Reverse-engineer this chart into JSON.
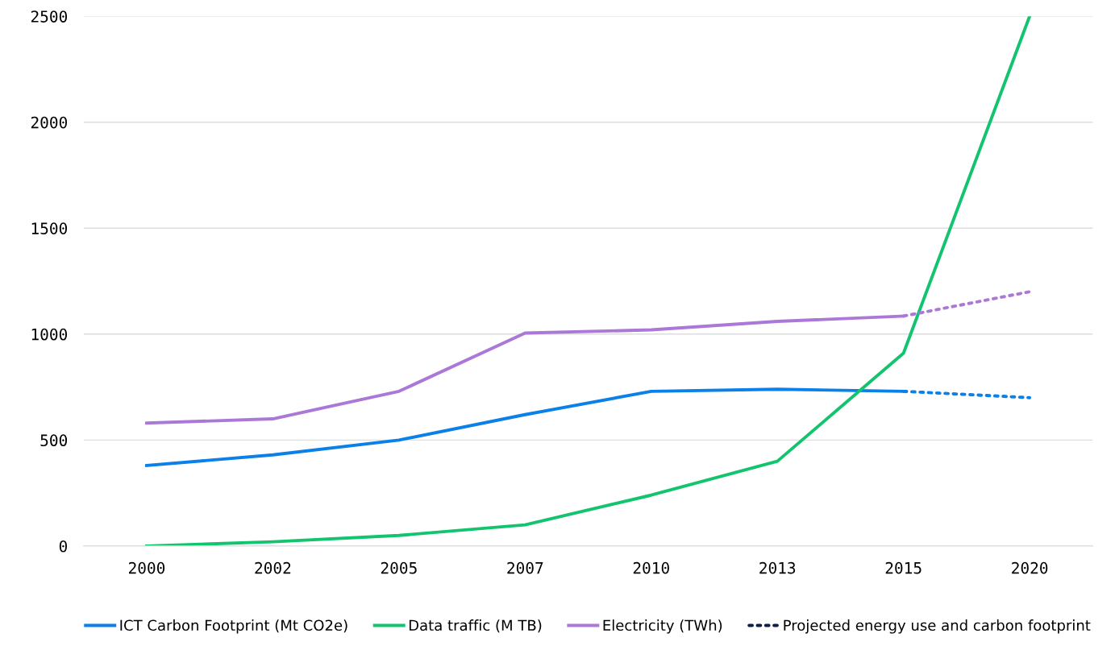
{
  "chart_data": {
    "type": "line",
    "categories": [
      "2000",
      "2002",
      "2005",
      "2007",
      "2010",
      "2013",
      "2015",
      "2020"
    ],
    "series": [
      {
        "name": "ICT Carbon Footprint (Mt CO2e)",
        "color": "#0a80e8",
        "values": [
          380,
          430,
          500,
          620,
          730,
          740,
          730,
          null
        ]
      },
      {
        "name": "Data traffic (M TB)",
        "color": "#13c46e",
        "values": [
          0,
          20,
          50,
          100,
          240,
          400,
          910,
          2500
        ]
      },
      {
        "name": "Electricity (TWh)",
        "color": "#ab78d8",
        "values": [
          580,
          600,
          730,
          1005,
          1020,
          1060,
          1085,
          null
        ]
      },
      {
        "color": "#0a80e8",
        "line_style": "dotted",
        "values": [
          null,
          null,
          null,
          null,
          null,
          null,
          730,
          700
        ]
      },
      {
        "color": "#ab78d8",
        "line_style": "dotted",
        "values": [
          null,
          null,
          null,
          null,
          null,
          null,
          1085,
          1200
        ]
      },
      {
        "name": "Projected energy use and carbon footprint",
        "color": "#0c1f4a",
        "line_style": "dotted",
        "values": [
          null,
          null,
          null,
          null,
          null,
          null,
          null,
          null
        ]
      }
    ],
    "ylim": [
      0,
      2500
    ],
    "yticks": [
      0,
      500,
      1000,
      1500,
      2000,
      2500
    ],
    "grid": "y",
    "legend": "bottom",
    "line_style": "solid"
  }
}
